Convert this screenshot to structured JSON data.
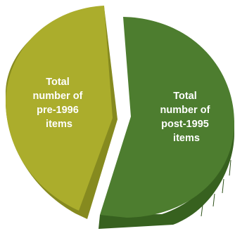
{
  "chart_data": {
    "type": "pie",
    "title": "",
    "style": "3d-exploded",
    "slices": [
      {
        "label_lines": [
          "Total",
          "number of",
          "pre-1996",
          "items"
        ],
        "percent": 41,
        "color": "#abad2c",
        "side_color": "#868a1f"
      },
      {
        "label_lines": [
          "Total",
          "number of",
          "post-1995",
          "items"
        ],
        "percent": 59,
        "color": "#4d7d2f",
        "side_color": "#37611f"
      }
    ]
  }
}
